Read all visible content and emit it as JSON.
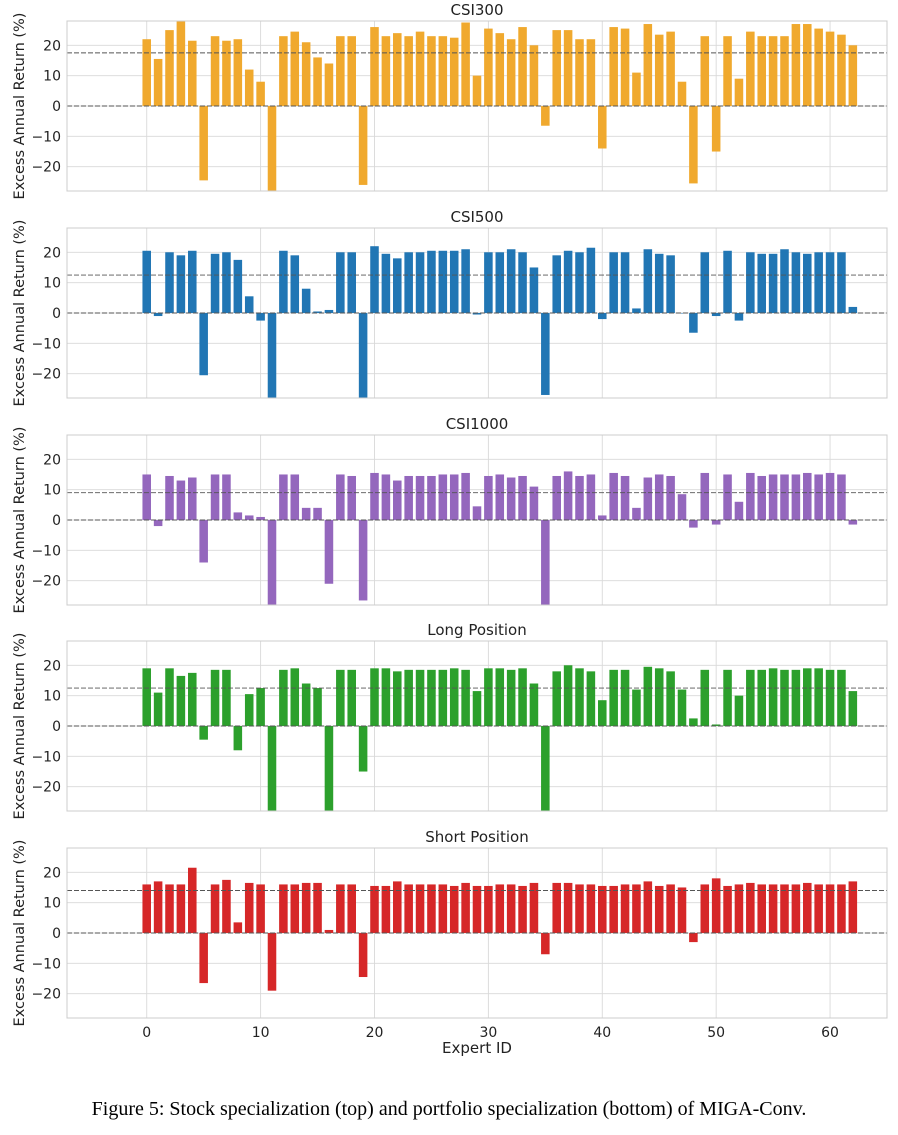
{
  "caption": "Figure 5: Stock specialization (top) and portfolio specialization (bottom) of MIGA-Conv.",
  "shared": {
    "ylabel": "Excess Annual Return (%)",
    "xlabel": "Expert ID",
    "xticks": [
      0,
      10,
      20,
      30,
      40,
      50,
      60
    ],
    "yticks": [
      -20,
      -10,
      0,
      10,
      20
    ],
    "ytick_labels": [
      "−20",
      "−10",
      "0",
      "10",
      "20"
    ],
    "xlim": [
      -7,
      65
    ],
    "ylim": [
      -28,
      28
    ]
  },
  "chart_data": [
    {
      "type": "bar",
      "title": "CSI300",
      "color": "#f0a92e",
      "reference_line": 17.5,
      "x": [
        0,
        1,
        2,
        3,
        4,
        5,
        6,
        7,
        8,
        9,
        10,
        11,
        12,
        13,
        14,
        15,
        16,
        17,
        18,
        19,
        20,
        21,
        22,
        23,
        24,
        25,
        26,
        27,
        28,
        29,
        30,
        31,
        32,
        33,
        34,
        35,
        36,
        37,
        38,
        39,
        40,
        41,
        42,
        43,
        44,
        45,
        46,
        47,
        48,
        49,
        50,
        51,
        52,
        53,
        54,
        55,
        56,
        57,
        58,
        59,
        60,
        61,
        62
      ],
      "values": [
        22,
        15.5,
        25,
        28,
        21.5,
        -24.5,
        23,
        21.5,
        22,
        12,
        8,
        -28,
        23,
        24.5,
        21,
        16,
        14,
        23,
        23,
        -26,
        26,
        23,
        24,
        23,
        24.5,
        23,
        23,
        22.5,
        27.5,
        10,
        25.5,
        24,
        22,
        26,
        20,
        -6.5,
        25,
        25,
        22,
        22,
        -14,
        26,
        25.5,
        11,
        27,
        23.5,
        24.5,
        8,
        -25.5,
        23,
        -15,
        23,
        9,
        24.5,
        23,
        23,
        23,
        27,
        27,
        25.5,
        24.5,
        23.5,
        20
      ]
    },
    {
      "type": "bar",
      "title": "CSI500",
      "color": "#2176b4",
      "reference_line": 12.5,
      "x": [
        0,
        1,
        2,
        3,
        4,
        5,
        6,
        7,
        8,
        9,
        10,
        11,
        12,
        13,
        14,
        15,
        16,
        17,
        18,
        19,
        20,
        21,
        22,
        23,
        24,
        25,
        26,
        27,
        28,
        29,
        30,
        31,
        32,
        33,
        34,
        35,
        36,
        37,
        38,
        39,
        40,
        41,
        42,
        43,
        44,
        45,
        46,
        47,
        48,
        49,
        50,
        51,
        52,
        53,
        54,
        55,
        56,
        57,
        58,
        59,
        60,
        61,
        62
      ],
      "values": [
        20.5,
        -1,
        20,
        19,
        20.5,
        -20.5,
        19.5,
        20,
        17.5,
        5.5,
        -2.5,
        -28,
        20.5,
        19,
        8,
        0.5,
        1,
        20,
        20,
        -28,
        22,
        19.5,
        18,
        20,
        20,
        20.5,
        20.5,
        20.5,
        21,
        -0.5,
        20,
        20,
        21,
        20,
        15,
        -27,
        19,
        20.5,
        20,
        21.5,
        -2,
        20,
        20,
        1.5,
        21,
        19.5,
        19,
        0,
        -6.5,
        20,
        -1,
        20.5,
        -2.5,
        20,
        19.5,
        19.5,
        21,
        20,
        19.5,
        20,
        20,
        20,
        2
      ]
    },
    {
      "type": "bar",
      "title": "CSI1000",
      "color": "#9467bd",
      "reference_line": 9,
      "x": [
        0,
        1,
        2,
        3,
        4,
        5,
        6,
        7,
        8,
        9,
        10,
        11,
        12,
        13,
        14,
        15,
        16,
        17,
        18,
        19,
        20,
        21,
        22,
        23,
        24,
        25,
        26,
        27,
        28,
        29,
        30,
        31,
        32,
        33,
        34,
        35,
        36,
        37,
        38,
        39,
        40,
        41,
        42,
        43,
        44,
        45,
        46,
        47,
        48,
        49,
        50,
        51,
        52,
        53,
        54,
        55,
        56,
        57,
        58,
        59,
        60,
        61,
        62
      ],
      "values": [
        15,
        -2,
        14.5,
        13,
        14,
        -14,
        15,
        15,
        2.5,
        1.5,
        1,
        -28,
        15,
        15,
        4,
        4,
        -21,
        15,
        14.5,
        -26.5,
        15.5,
        15,
        13,
        14.5,
        14.5,
        14.5,
        15,
        15,
        15.5,
        4.5,
        14.5,
        15,
        14,
        14.5,
        11,
        -28,
        14.5,
        16,
        14.5,
        15,
        1.5,
        15.5,
        14.5,
        4,
        14,
        15,
        14.5,
        8.5,
        -2.5,
        15.5,
        -1.5,
        15,
        6,
        15.5,
        14.5,
        15,
        15,
        15,
        15.5,
        15,
        15.5,
        15,
        -1.5
      ]
    },
    {
      "type": "bar",
      "title": "Long Position",
      "color": "#2ca02c",
      "reference_line": 12.5,
      "x": [
        0,
        1,
        2,
        3,
        4,
        5,
        6,
        7,
        8,
        9,
        10,
        11,
        12,
        13,
        14,
        15,
        16,
        17,
        18,
        19,
        20,
        21,
        22,
        23,
        24,
        25,
        26,
        27,
        28,
        29,
        30,
        31,
        32,
        33,
        34,
        35,
        36,
        37,
        38,
        39,
        40,
        41,
        42,
        43,
        44,
        45,
        46,
        47,
        48,
        49,
        50,
        51,
        52,
        53,
        54,
        55,
        56,
        57,
        58,
        59,
        60,
        61,
        62
      ],
      "values": [
        19,
        11,
        19,
        16.5,
        17.5,
        -4.5,
        18.5,
        18.5,
        -8,
        10.5,
        12.5,
        -28,
        18.5,
        19,
        14,
        12.5,
        -28,
        18.5,
        18.5,
        -15,
        19,
        19,
        18,
        18.5,
        18.5,
        18.5,
        18.5,
        19,
        18.5,
        11.5,
        19,
        19,
        18.5,
        19,
        14,
        -28,
        18,
        20,
        19,
        18,
        8.5,
        18.5,
        18.5,
        12,
        19.5,
        19,
        18,
        12,
        2.5,
        18.5,
        0.5,
        18.5,
        10,
        18.5,
        18.5,
        19,
        18.5,
        18.5,
        19,
        19,
        18.5,
        18.5,
        11.5
      ]
    },
    {
      "type": "bar",
      "title": "Short Position",
      "color": "#d62728",
      "reference_line": 14,
      "x": [
        0,
        1,
        2,
        3,
        4,
        5,
        6,
        7,
        8,
        9,
        10,
        11,
        12,
        13,
        14,
        15,
        16,
        17,
        18,
        19,
        20,
        21,
        22,
        23,
        24,
        25,
        26,
        27,
        28,
        29,
        30,
        31,
        32,
        33,
        34,
        35,
        36,
        37,
        38,
        39,
        40,
        41,
        42,
        43,
        44,
        45,
        46,
        47,
        48,
        49,
        50,
        51,
        52,
        53,
        54,
        55,
        56,
        57,
        58,
        59,
        60,
        61,
        62
      ],
      "values": [
        16,
        17,
        16,
        16,
        21.5,
        -16.5,
        16,
        17.5,
        3.5,
        16.5,
        16,
        -19,
        16,
        16,
        16.5,
        16.5,
        1,
        16,
        16,
        -14.5,
        15.5,
        15.5,
        17,
        16,
        16,
        16,
        16,
        15.5,
        16.5,
        15.5,
        15.5,
        16,
        16,
        15.5,
        16.5,
        -7,
        16.5,
        16.5,
        16,
        16,
        15.5,
        15.5,
        16,
        16,
        17,
        15.5,
        16,
        15,
        -3,
        16,
        18,
        15.5,
        16,
        16.5,
        16,
        16,
        16,
        16,
        16.5,
        16,
        16,
        16,
        17
      ]
    }
  ]
}
